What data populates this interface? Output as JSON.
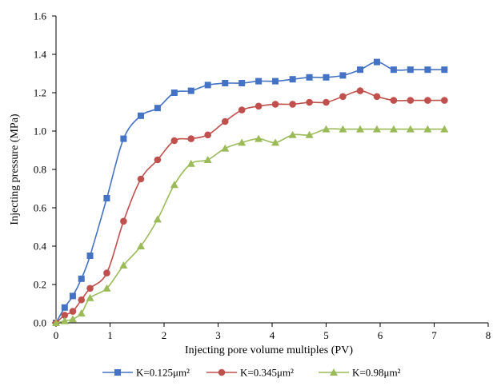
{
  "chart_data": {
    "type": "line",
    "title": "",
    "xlabel": "Injecting pore volume  multiples (PV)",
    "ylabel": "Injecting pressure  (MPa)",
    "xlim": [
      0,
      8
    ],
    "ylim": [
      0,
      1.6
    ],
    "x_ticks": [
      "0",
      "1",
      "2",
      "3",
      "4",
      "5",
      "6",
      "7",
      "8"
    ],
    "y_ticks": [
      "0.0",
      "0.2",
      "0.4",
      "0.6",
      "0.8",
      "1.0",
      "1.2",
      "1.4",
      "1.6"
    ],
    "grid": false,
    "legend_position": "bottom",
    "series": [
      {
        "name": "K=0.125μm²",
        "color": "#4472C4",
        "marker": "square",
        "x": [
          0,
          0.16,
          0.31,
          0.47,
          0.63,
          0.94,
          1.25,
          1.57,
          1.88,
          2.19,
          2.5,
          2.81,
          3.13,
          3.44,
          3.75,
          4.06,
          4.38,
          4.69,
          5.0,
          5.31,
          5.63,
          5.94,
          6.25,
          6.56,
          6.88,
          7.19
        ],
        "y": [
          0,
          0.08,
          0.14,
          0.23,
          0.35,
          0.65,
          0.96,
          1.08,
          1.12,
          1.2,
          1.21,
          1.24,
          1.25,
          1.25,
          1.26,
          1.26,
          1.27,
          1.28,
          1.28,
          1.29,
          1.32,
          1.36,
          1.32,
          1.32,
          1.32,
          1.32
        ]
      },
      {
        "name": "K=0.345μm²",
        "color": "#C0504D",
        "marker": "circle",
        "x": [
          0,
          0.16,
          0.31,
          0.47,
          0.63,
          0.94,
          1.25,
          1.57,
          1.88,
          2.19,
          2.5,
          2.81,
          3.13,
          3.44,
          3.75,
          4.06,
          4.38,
          4.69,
          5.0,
          5.31,
          5.63,
          5.94,
          6.25,
          6.56,
          6.88,
          7.19
        ],
        "y": [
          0,
          0.04,
          0.06,
          0.12,
          0.18,
          0.26,
          0.53,
          0.75,
          0.85,
          0.95,
          0.96,
          0.98,
          1.05,
          1.11,
          1.13,
          1.14,
          1.14,
          1.15,
          1.15,
          1.18,
          1.21,
          1.18,
          1.16,
          1.16,
          1.16,
          1.16
        ]
      },
      {
        "name": "K=0.98μm²",
        "color": "#9BBB59",
        "marker": "triangle",
        "x": [
          0,
          0.16,
          0.31,
          0.47,
          0.63,
          0.94,
          1.25,
          1.57,
          1.88,
          2.19,
          2.5,
          2.81,
          3.13,
          3.44,
          3.75,
          4.06,
          4.38,
          4.69,
          5.0,
          5.31,
          5.63,
          5.94,
          6.25,
          6.56,
          6.88,
          7.19
        ],
        "y": [
          0,
          0.01,
          0.02,
          0.05,
          0.13,
          0.18,
          0.3,
          0.4,
          0.54,
          0.72,
          0.83,
          0.85,
          0.91,
          0.94,
          0.96,
          0.94,
          0.98,
          0.98,
          1.01,
          1.01,
          1.01,
          1.01,
          1.01,
          1.01,
          1.01,
          1.01
        ]
      }
    ]
  }
}
